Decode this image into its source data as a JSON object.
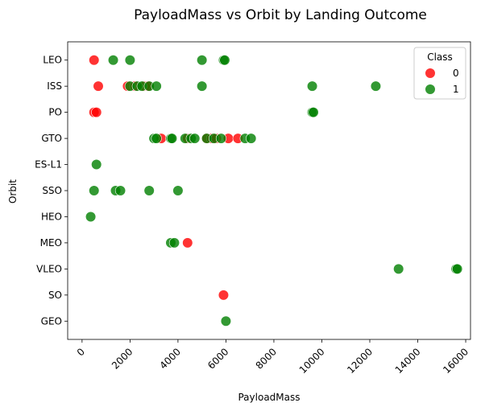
{
  "chart_data": {
    "type": "scatter",
    "title": "PayloadMass vs Orbit by Landing Outcome",
    "xlabel": "PayloadMass",
    "ylabel": "Orbit",
    "xlim": [
      -600,
      16200
    ],
    "x_ticks": [
      0,
      2000,
      4000,
      6000,
      8000,
      10000,
      12000,
      14000,
      16000
    ],
    "x_tick_labels": [
      "0",
      "2000",
      "4000",
      "6000",
      "8000",
      "10000",
      "12000",
      "14000",
      "16000"
    ],
    "categories": [
      "LEO",
      "ISS",
      "PO",
      "GTO",
      "ES-L1",
      "SSO",
      "HEO",
      "MEO",
      "VLEO",
      "SO",
      "GEO"
    ],
    "grid": false,
    "legend": {
      "title": "Class",
      "placement": "top-right",
      "entries": [
        "0",
        "1"
      ]
    },
    "series": [
      {
        "name": "0",
        "color": "#ff0000",
        "points": [
          {
            "x": 500,
            "y": "LEO"
          },
          {
            "x": 677,
            "y": "ISS"
          },
          {
            "x": 1900,
            "y": "ISS"
          },
          {
            "x": 2200,
            "y": "ISS"
          },
          {
            "x": 2600,
            "y": "ISS"
          },
          {
            "x": 2750,
            "y": "ISS"
          },
          {
            "x": 500,
            "y": "PO"
          },
          {
            "x": 600,
            "y": "PO"
          },
          {
            "x": 3300,
            "y": "GTO"
          },
          {
            "x": 4400,
            "y": "GTO"
          },
          {
            "x": 5200,
            "y": "GTO"
          },
          {
            "x": 5400,
            "y": "GTO"
          },
          {
            "x": 5600,
            "y": "GTO"
          },
          {
            "x": 6100,
            "y": "GTO"
          },
          {
            "x": 6500,
            "y": "GTO"
          },
          {
            "x": 4400,
            "y": "MEO"
          },
          {
            "x": 5900,
            "y": "SO"
          }
        ]
      },
      {
        "name": "1",
        "color": "#008000",
        "points": [
          {
            "x": 1300,
            "y": "LEO"
          },
          {
            "x": 2000,
            "y": "LEO"
          },
          {
            "x": 5000,
            "y": "LEO"
          },
          {
            "x": 5900,
            "y": "LEO"
          },
          {
            "x": 5950,
            "y": "LEO"
          },
          {
            "x": 2000,
            "y": "ISS"
          },
          {
            "x": 2300,
            "y": "ISS"
          },
          {
            "x": 2500,
            "y": "ISS"
          },
          {
            "x": 2800,
            "y": "ISS"
          },
          {
            "x": 3100,
            "y": "ISS"
          },
          {
            "x": 5000,
            "y": "ISS"
          },
          {
            "x": 9600,
            "y": "ISS"
          },
          {
            "x": 12250,
            "y": "ISS"
          },
          {
            "x": 9600,
            "y": "PO"
          },
          {
            "x": 9650,
            "y": "PO"
          },
          {
            "x": 3000,
            "y": "GTO"
          },
          {
            "x": 3100,
            "y": "GTO"
          },
          {
            "x": 3700,
            "y": "GTO"
          },
          {
            "x": 3750,
            "y": "GTO"
          },
          {
            "x": 4300,
            "y": "GTO"
          },
          {
            "x": 4550,
            "y": "GTO"
          },
          {
            "x": 4700,
            "y": "GTO"
          },
          {
            "x": 5200,
            "y": "GTO"
          },
          {
            "x": 5500,
            "y": "GTO"
          },
          {
            "x": 5800,
            "y": "GTO"
          },
          {
            "x": 6800,
            "y": "GTO"
          },
          {
            "x": 7050,
            "y": "GTO"
          },
          {
            "x": 600,
            "y": "ES-L1"
          },
          {
            "x": 500,
            "y": "SSO"
          },
          {
            "x": 1400,
            "y": "SSO"
          },
          {
            "x": 1600,
            "y": "SSO"
          },
          {
            "x": 2800,
            "y": "SSO"
          },
          {
            "x": 4000,
            "y": "SSO"
          },
          {
            "x": 360,
            "y": "HEO"
          },
          {
            "x": 3700,
            "y": "MEO"
          },
          {
            "x": 3850,
            "y": "MEO"
          },
          {
            "x": 13200,
            "y": "VLEO"
          },
          {
            "x": 15600,
            "y": "VLEO"
          },
          {
            "x": 15650,
            "y": "VLEO"
          },
          {
            "x": 6000,
            "y": "GEO"
          }
        ]
      }
    ]
  }
}
